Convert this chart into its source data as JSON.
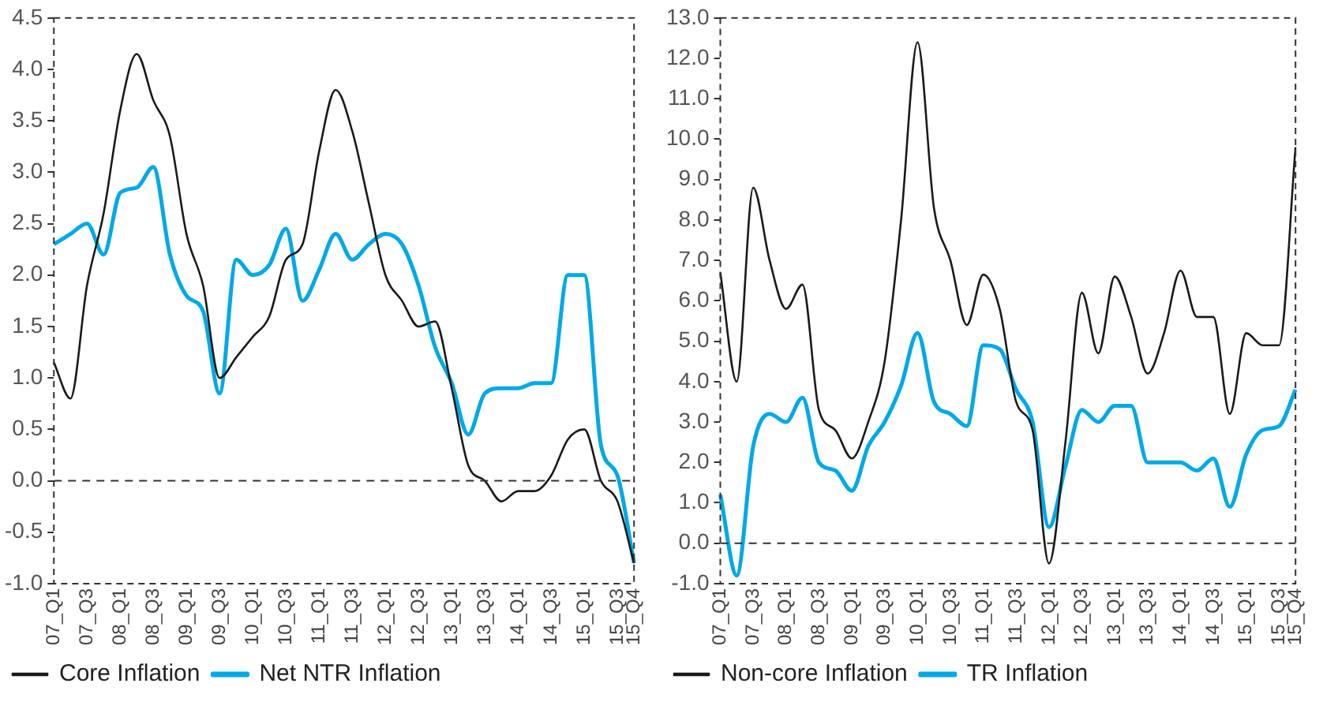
{
  "chart_data": [
    {
      "type": "line",
      "categories": [
        "07_Q1",
        null,
        "07_Q3",
        null,
        "08_Q1",
        null,
        "08_Q3",
        null,
        "09_Q1",
        null,
        "09_Q3",
        null,
        "10_Q1",
        null,
        "10_Q3",
        null,
        "11_Q1",
        null,
        "11_Q3",
        null,
        "12_Q1",
        null,
        "12_Q3",
        null,
        "13_Q1",
        null,
        "13_Q3",
        null,
        "14_Q1",
        null,
        "14_Q3",
        null,
        "15_Q1",
        null,
        "15_Q3",
        "15_Q4"
      ],
      "series": [
        {
          "name": "Core Inflation",
          "color": "#1a1a1a",
          "values": [
            1.15,
            0.8,
            1.9,
            2.6,
            3.6,
            4.15,
            3.7,
            3.35,
            2.4,
            1.9,
            1.0,
            1.2,
            1.4,
            1.6,
            2.15,
            2.3,
            3.2,
            3.8,
            3.4,
            2.7,
            2.0,
            1.75,
            1.5,
            1.55,
            0.9,
            0.15,
            0.0,
            -0.2,
            -0.1,
            -0.1,
            0.05,
            0.4,
            0.5,
            0.0,
            -0.2,
            -0.8
          ]
        },
        {
          "name": "Net NTR Inflation",
          "color": "#00a9e6",
          "values": [
            2.3,
            2.4,
            2.5,
            2.2,
            2.8,
            2.85,
            3.05,
            2.2,
            1.8,
            1.65,
            0.85,
            2.15,
            2.0,
            2.1,
            2.45,
            1.75,
            2.05,
            2.4,
            2.15,
            2.3,
            2.4,
            2.3,
            1.9,
            1.3,
            0.95,
            0.45,
            0.85,
            0.9,
            0.9,
            0.95,
            0.95,
            2.0,
            2.0,
            0.35,
            0.05,
            -0.8
          ]
        }
      ],
      "ylim": [
        -1.0,
        4.5
      ],
      "yticks": [
        {
          "value": -1,
          "label": "-1.0"
        },
        {
          "value": -0.5,
          "label": "-0.5"
        },
        {
          "value": 0,
          "label": "0.0"
        },
        {
          "value": 0.5,
          "label": "0.5"
        },
        {
          "value": 1,
          "label": "1.0"
        },
        {
          "value": 1.5,
          "label": "1.5"
        },
        {
          "value": 2,
          "label": "2.0"
        },
        {
          "value": 2.5,
          "label": "2.5"
        },
        {
          "value": 3,
          "label": "3.0"
        },
        {
          "value": 3.5,
          "label": "3.5"
        },
        {
          "value": 4,
          "label": "4.0"
        },
        {
          "value": 4.5,
          "label": "4.5"
        }
      ],
      "ref_lines": [
        {
          "axis": "y",
          "value": 0,
          "line_style": "dashed",
          "color": "#333333"
        }
      ],
      "grid": false,
      "legend": "bottom",
      "marker": "none",
      "line_style": "solid"
    },
    {
      "type": "line",
      "categories": [
        "07_Q1",
        null,
        "07_Q3",
        null,
        "08_Q1",
        null,
        "08_Q3",
        null,
        "09_Q1",
        null,
        "09_Q3",
        null,
        "10_Q1",
        null,
        "10_Q3",
        null,
        "11_Q1",
        null,
        "11_Q3",
        null,
        "12_Q1",
        null,
        "12_Q3",
        null,
        "13_Q1",
        null,
        "13_Q3",
        null,
        "14_Q1",
        null,
        "14_Q3",
        null,
        "15_Q1",
        null,
        "15_Q3",
        "15_Q4"
      ],
      "series": [
        {
          "name": "Non-core Inflation",
          "color": "#1a1a1a",
          "values": [
            6.7,
            4.0,
            8.8,
            7.0,
            5.8,
            6.4,
            3.3,
            2.8,
            2.1,
            3.0,
            4.5,
            8.0,
            12.4,
            8.3,
            7.0,
            5.4,
            6.65,
            5.8,
            3.5,
            2.8,
            -0.5,
            2.5,
            6.2,
            4.7,
            6.6,
            5.6,
            4.2,
            5.2,
            6.75,
            5.6,
            5.6,
            3.2,
            5.2,
            4.9,
            4.9,
            9.8
          ]
        },
        {
          "name": "TR Inflation",
          "color": "#00a9e6",
          "values": [
            1.2,
            -0.8,
            2.4,
            3.2,
            3.0,
            3.6,
            2.0,
            1.8,
            1.3,
            2.4,
            3.0,
            3.9,
            5.2,
            3.5,
            3.2,
            2.9,
            4.9,
            4.8,
            3.8,
            3.0,
            0.4,
            1.9,
            3.3,
            3.0,
            3.4,
            3.4,
            2.0,
            2.0,
            2.0,
            1.8,
            2.1,
            0.9,
            2.2,
            2.8,
            2.9,
            3.8
          ]
        }
      ],
      "ylim": [
        -1.0,
        13.0
      ],
      "yticks": [
        {
          "value": -1,
          "label": "-1.0"
        },
        {
          "value": 0,
          "label": "0.0"
        },
        {
          "value": 1,
          "label": "1.0"
        },
        {
          "value": 2,
          "label": "2.0"
        },
        {
          "value": 3,
          "label": "3.0"
        },
        {
          "value": 4,
          "label": "4.0"
        },
        {
          "value": 5,
          "label": "5.0"
        },
        {
          "value": 6,
          "label": "6.0"
        },
        {
          "value": 7,
          "label": "7.0"
        },
        {
          "value": 8,
          "label": "8.0"
        },
        {
          "value": 9,
          "label": "9.0"
        },
        {
          "value": 10,
          "label": "10.0"
        },
        {
          "value": 11,
          "label": "11.0"
        },
        {
          "value": 12,
          "label": "12.0"
        },
        {
          "value": 13,
          "label": "13.0"
        }
      ],
      "ref_lines": [
        {
          "axis": "y",
          "value": 0,
          "line_style": "dashed",
          "color": "#333333"
        }
      ],
      "grid": false,
      "legend": "bottom",
      "marker": "none",
      "line_style": "solid"
    }
  ]
}
